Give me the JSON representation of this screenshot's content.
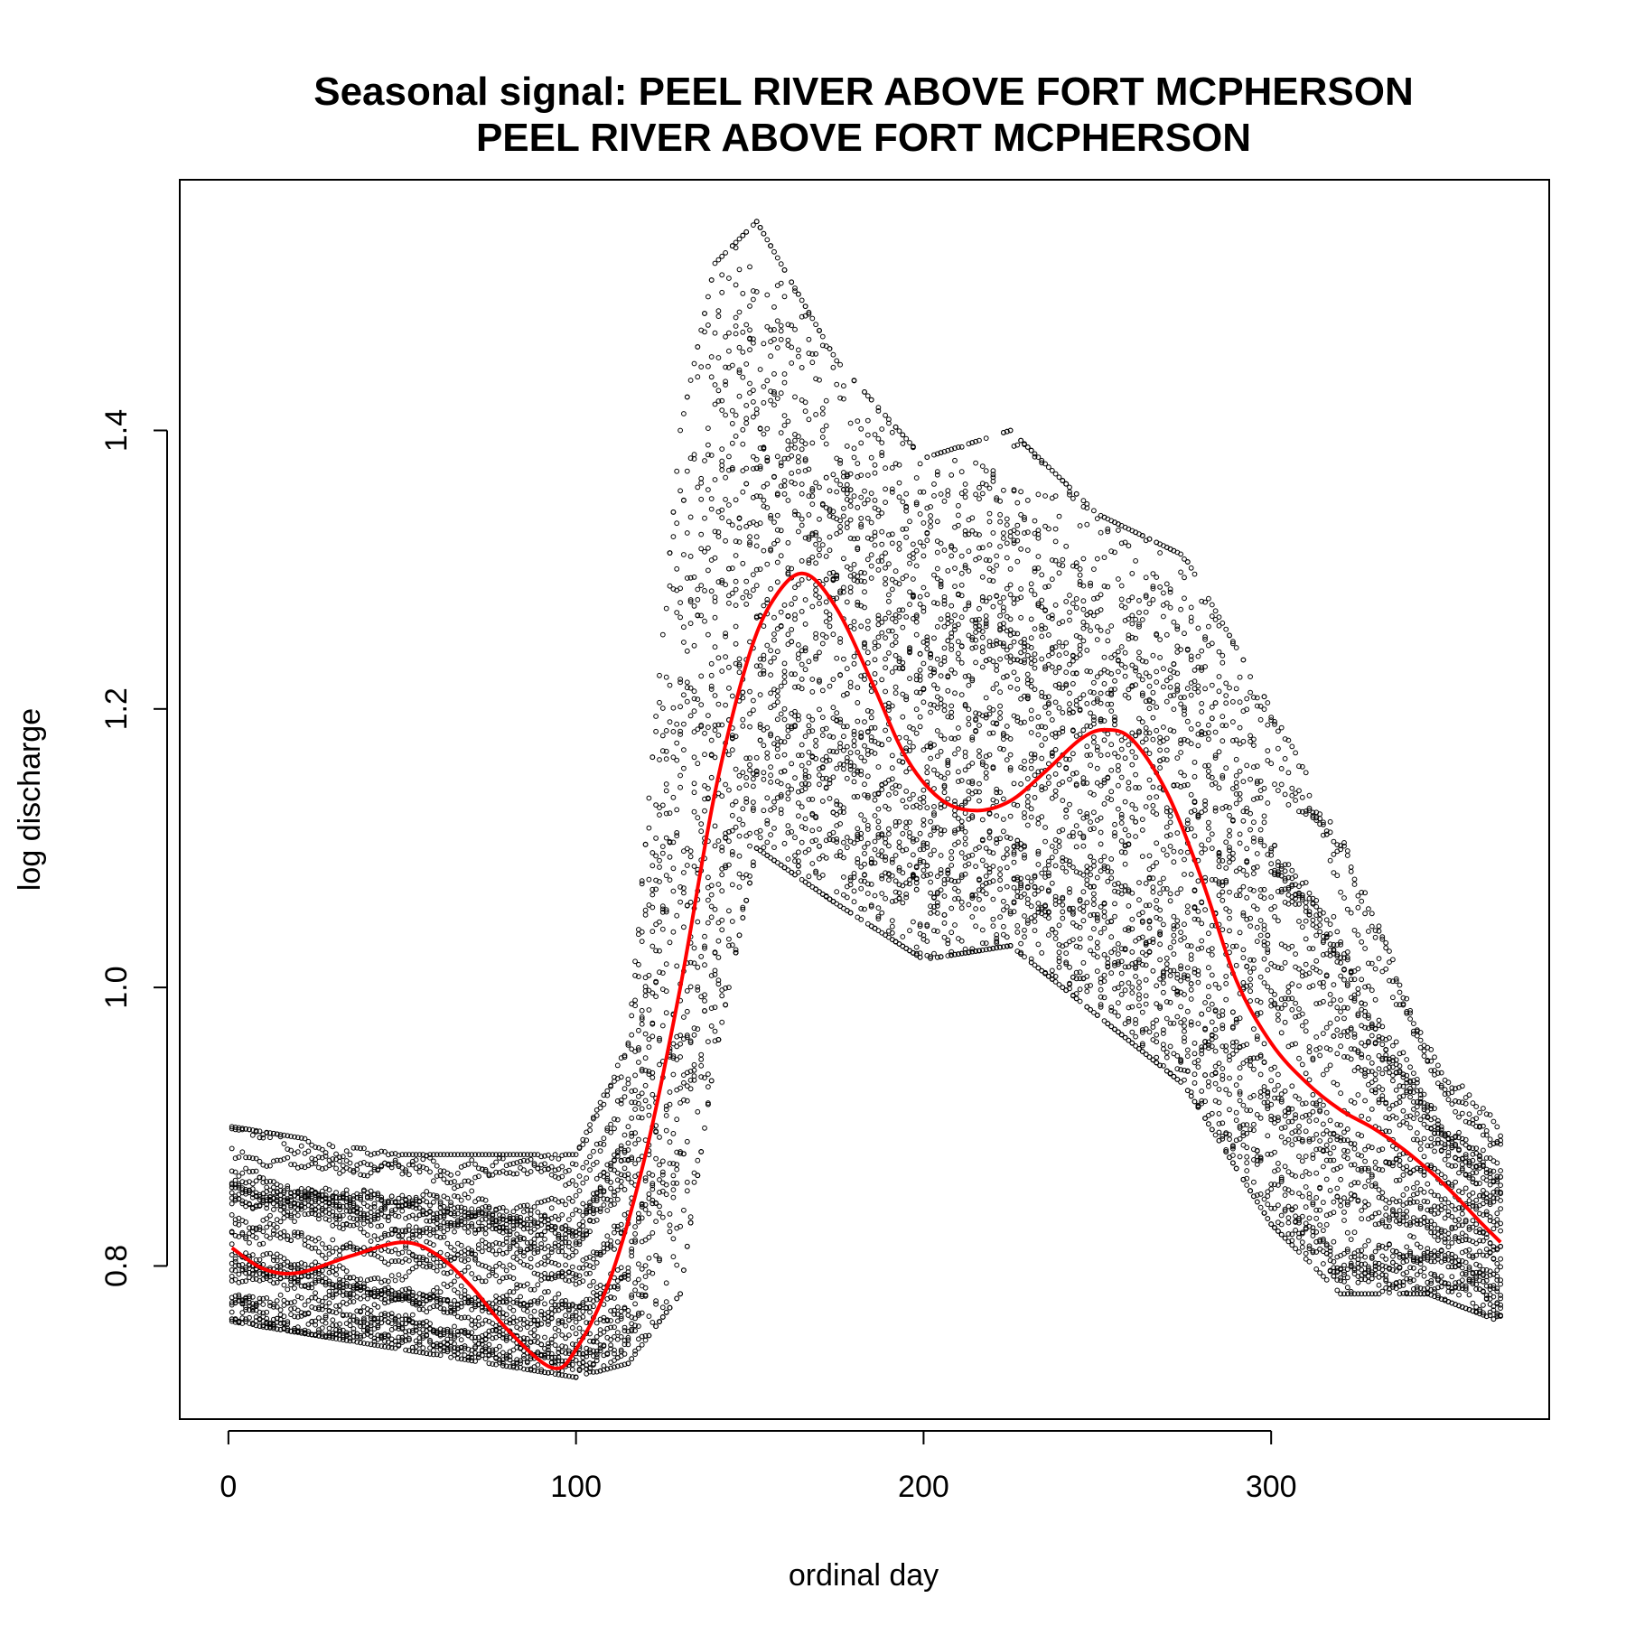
{
  "chart_data": {
    "type": "scatter",
    "title": "Seasonal signal: PEEL RIVER ABOVE FORT MCPHERSON",
    "subtitle": "PEEL RIVER ABOVE FORT MCPHERSON",
    "xlabel": "ordinal day",
    "ylabel": "log discharge",
    "xlim": [
      -14,
      380
    ],
    "ylim": [
      0.69,
      1.58
    ],
    "xticks": [
      0,
      100,
      200,
      300
    ],
    "xtick_labels": [
      "0",
      "100",
      "200",
      "300"
    ],
    "yticks": [
      0.8,
      1.0,
      1.2,
      1.4
    ],
    "ytick_labels": [
      "0.8",
      "1.0",
      "1.2",
      "1.4"
    ],
    "grid": false,
    "legend": "none",
    "point_color": "#000000",
    "marker": "open-circle",
    "series": [
      {
        "type": "scatter",
        "annual_traces": 26,
        "days": [
          1,
          366
        ],
        "seasonal_envelope": [
          {
            "day": 1,
            "lo": 0.76,
            "hi": 0.9
          },
          {
            "day": 50,
            "lo": 0.74,
            "hi": 0.88
          },
          {
            "day": 100,
            "lo": 0.72,
            "hi": 0.88
          },
          {
            "day": 115,
            "lo": 0.73,
            "hi": 0.96
          },
          {
            "day": 130,
            "lo": 0.78,
            "hi": 1.4
          },
          {
            "day": 140,
            "lo": 0.95,
            "hi": 1.52
          },
          {
            "day": 152,
            "lo": 1.1,
            "hi": 1.55
          },
          {
            "day": 175,
            "lo": 1.06,
            "hi": 1.45
          },
          {
            "day": 200,
            "lo": 1.02,
            "hi": 1.38
          },
          {
            "day": 225,
            "lo": 1.03,
            "hi": 1.4
          },
          {
            "day": 250,
            "lo": 0.98,
            "hi": 1.34
          },
          {
            "day": 275,
            "lo": 0.93,
            "hi": 1.31
          },
          {
            "day": 300,
            "lo": 0.83,
            "hi": 1.2
          },
          {
            "day": 320,
            "lo": 0.78,
            "hi": 1.11
          },
          {
            "day": 345,
            "lo": 0.78,
            "hi": 0.96
          },
          {
            "day": 366,
            "lo": 0.76,
            "hi": 0.9
          }
        ]
      },
      {
        "type": "line",
        "color": "#ff0000",
        "x": [
          1,
          10,
          20,
          35,
          50,
          60,
          70,
          80,
          93,
          100,
          110,
          120,
          130,
          140,
          150,
          158,
          166,
          175,
          185,
          195,
          205,
          215,
          225,
          235,
          245,
          252,
          260,
          270,
          280,
          290,
          300,
          310,
          320,
          330,
          340,
          350,
          360,
          366
        ],
        "y": [
          0.813,
          0.798,
          0.795,
          0.807,
          0.817,
          0.808,
          0.785,
          0.755,
          0.727,
          0.74,
          0.792,
          0.88,
          1.0,
          1.14,
          1.24,
          1.283,
          1.297,
          1.272,
          1.22,
          1.165,
          1.135,
          1.127,
          1.134,
          1.155,
          1.178,
          1.185,
          1.178,
          1.14,
          1.078,
          1.005,
          0.96,
          0.932,
          0.912,
          0.898,
          0.88,
          0.858,
          0.832,
          0.817
        ]
      }
    ]
  }
}
